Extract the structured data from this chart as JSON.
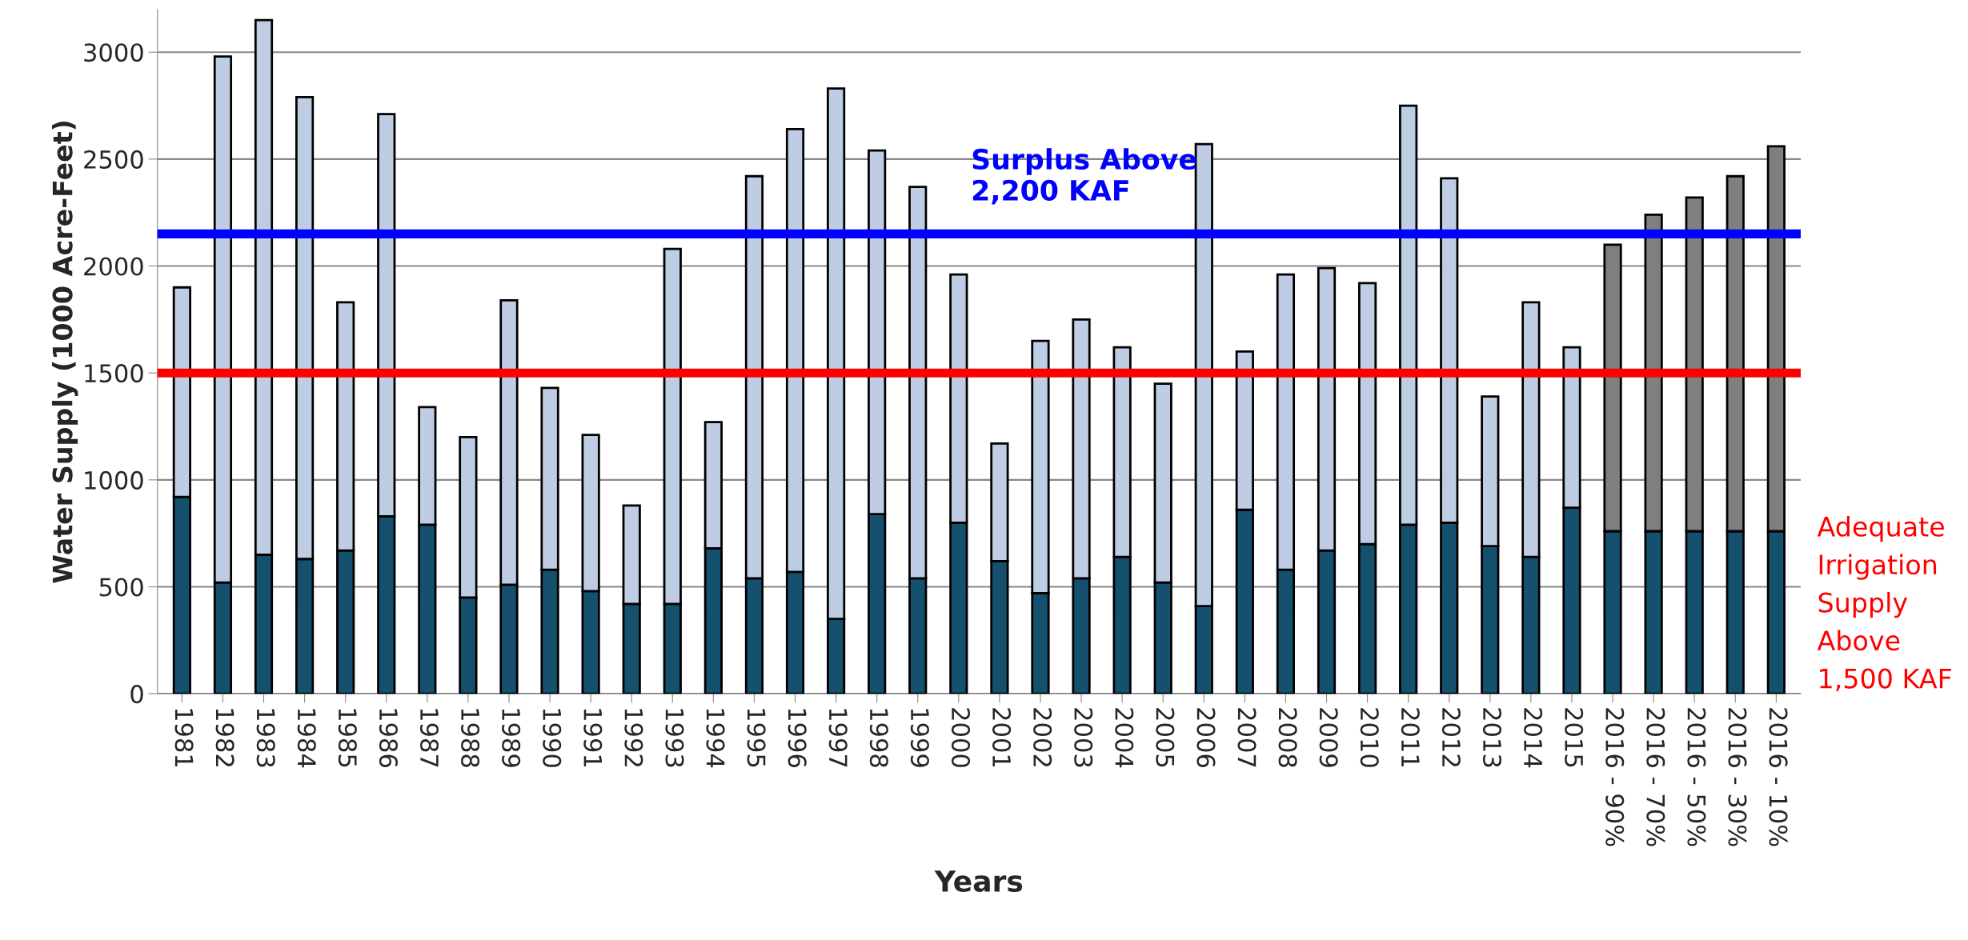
{
  "chart_data": {
    "type": "bar",
    "stacked": true,
    "xlabel": "Years",
    "ylabel": "Water Supply (1000 Acre-Feet)",
    "categories": [
      "1981",
      "1982",
      "1983",
      "1984",
      "1985",
      "1986",
      "1987",
      "1988",
      "1989",
      "1990",
      "1991",
      "1992",
      "1993",
      "1994",
      "1995",
      "1996",
      "1997",
      "1998",
      "1999",
      "2000",
      "2001",
      "2002",
      "2003",
      "2004",
      "2005",
      "2006",
      "2007",
      "2008",
      "2009",
      "2010",
      "2011",
      "2012",
      "2013",
      "2014",
      "2015",
      "2016 - 90%",
      "2016 - 70%",
      "2016 - 50%",
      "2016 - 30%",
      "2016 - 10%"
    ],
    "series": [
      {
        "color": "#15516f",
        "values": [
          920,
          520,
          650,
          630,
          670,
          830,
          790,
          450,
          510,
          580,
          480,
          420,
          420,
          680,
          540,
          570,
          350,
          840,
          540,
          800,
          620,
          470,
          540,
          640,
          520,
          410,
          860,
          580,
          670,
          700,
          790,
          800,
          690,
          640,
          870,
          760,
          760,
          760,
          760,
          760
        ]
      },
      {
        "colors": [
          "#bfcde4",
          "#bfcde4",
          "#bfcde4",
          "#bfcde4",
          "#bfcde4",
          "#bfcde4",
          "#bfcde4",
          "#bfcde4",
          "#bfcde4",
          "#bfcde4",
          "#bfcde4",
          "#bfcde4",
          "#bfcde4",
          "#bfcde4",
          "#bfcde4",
          "#bfcde4",
          "#bfcde4",
          "#bfcde4",
          "#bfcde4",
          "#bfcde4",
          "#bfcde4",
          "#bfcde4",
          "#bfcde4",
          "#bfcde4",
          "#bfcde4",
          "#bfcde4",
          "#bfcde4",
          "#bfcde4",
          "#bfcde4",
          "#bfcde4",
          "#bfcde4",
          "#bfcde4",
          "#bfcde4",
          "#bfcde4",
          "#bfcde4",
          "#7f7f7f",
          "#7f7f7f",
          "#7f7f7f",
          "#7f7f7f",
          "#7f7f7f"
        ],
        "values": [
          980,
          2460,
          2500,
          2160,
          1160,
          1880,
          550,
          750,
          1330,
          850,
          730,
          460,
          1660,
          590,
          1880,
          2070,
          2480,
          1700,
          1830,
          1160,
          550,
          1180,
          1210,
          980,
          930,
          2160,
          740,
          1380,
          1320,
          1220,
          1960,
          1610,
          700,
          1190,
          750,
          1340,
          1480,
          1560,
          1660,
          1800
        ]
      }
    ],
    "ylim": [
      0,
      3200
    ],
    "yticks": [
      0,
      500,
      1000,
      1500,
      2000,
      2500,
      3000
    ],
    "grid": "y",
    "ref_lines": [
      {
        "axis": "y",
        "value": 2150,
        "label": "Surplus Above\n2,200 KAF",
        "color": "#0000ff"
      },
      {
        "axis": "y",
        "value": 1500,
        "label": "Adequate\nIrrigation\nSupply\nAbove\n1,500 KAF",
        "color": "#ff0000"
      }
    ]
  }
}
